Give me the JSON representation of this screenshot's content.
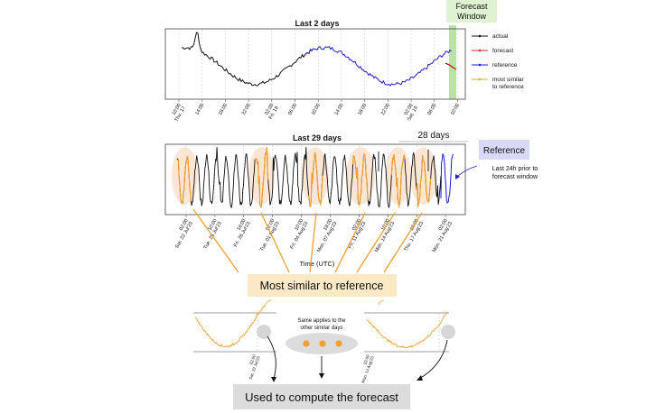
{
  "top_chart": {
    "title": "Last 2 days",
    "x_ticks": [
      "10:00\nThu. 17",
      "14:00",
      "18:00",
      "22:00",
      "02:00\nFri. 18",
      "06:00",
      "10:00",
      "14:00",
      "18:00",
      "22:00",
      "02:00\nSat. 19",
      "06:00",
      "10:00"
    ],
    "legend": [
      {
        "label": "actual",
        "color": "#111111"
      },
      {
        "label": "forecast",
        "color": "#d62728"
      },
      {
        "label": "reference",
        "color": "#1f1fd0"
      },
      {
        "label": "most similar\nto reference",
        "color": "#f0a030"
      }
    ]
  },
  "forecast_window_label": "Forecast\nWindow",
  "bottom_chart": {
    "title": "Last 29 days",
    "xlabel": "Time (UTC)",
    "x_ticks": [
      "02:00\nSat. 22 Jul'23",
      "10:00\nTue. 25 Jul'23",
      "18:00\nFri. 28 Jul'23",
      "02:00\nTue. 01 Aug'23",
      "10:00\nFri. 04 Aug'23",
      "18:00\nMon. 07 Aug'23",
      "02:00\nFri. 11 Aug'23",
      "10:00\nMon. 14 Aug'23",
      "18:00\nThu. 17 Aug'23",
      "02:00\nMon. 21 Aug'23"
    ]
  },
  "span_label": "28 days",
  "reference_box": "Reference",
  "reference_note": "Last 24h prior to\nforecast window",
  "similar_label": "Most similar to reference",
  "insets": [
    {
      "tick": "02:00\nSat. 22 Jul'23"
    },
    {
      "tick": "02:00\nMon. 14 Aug'23"
    }
  ],
  "applies_note": "Same applies to the\nother similar days",
  "forecast_box": "Used to compute the forecast",
  "colors": {
    "forecast_window": "#b9e3a6",
    "similar": "#f0a030",
    "reference": "#1f1fd0",
    "highlight_box": "#d7d9f7",
    "similar_box": "#fbe9c6",
    "gray_box": "#dcdcdc"
  }
}
